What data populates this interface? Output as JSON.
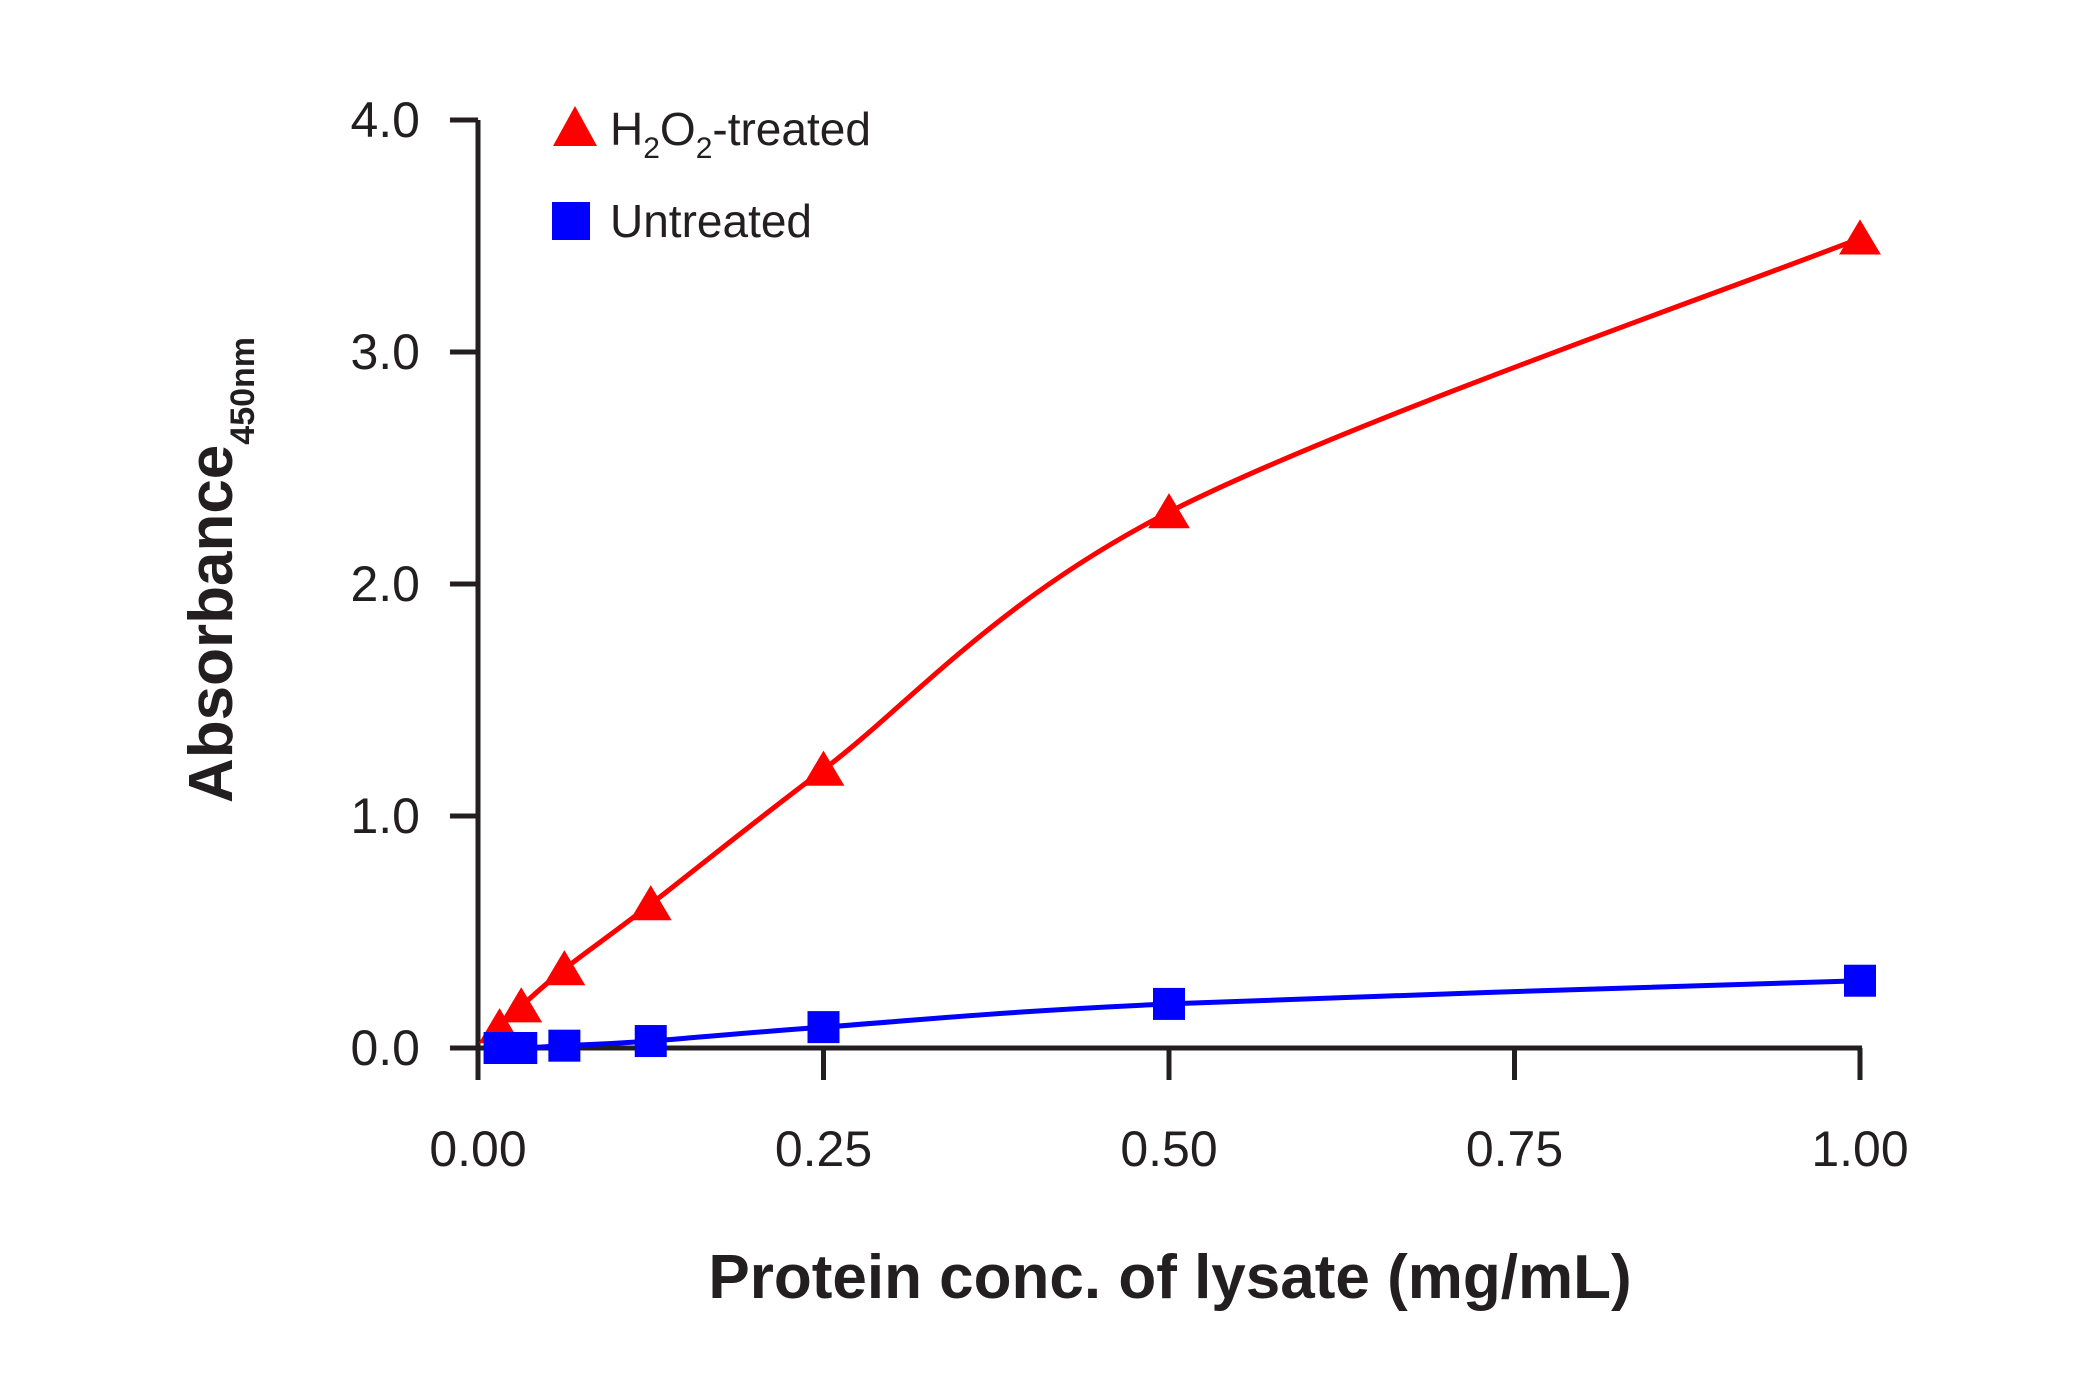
{
  "chart_data": {
    "type": "line",
    "xlabel": "Protein conc. of lysate (mg/mL)",
    "ylabel": {
      "main": "Absorbance",
      "subscript": "450nm"
    },
    "xlim": [
      0,
      1
    ],
    "ylim": [
      0,
      4
    ],
    "xticks": [
      "0.00",
      "0.25",
      "0.50",
      "0.75",
      "1.00"
    ],
    "yticks": [
      "0.0",
      "1.0",
      "2.0",
      "3.0",
      "4.0"
    ],
    "grid": false,
    "legend_position": "top-left",
    "series": [
      {
        "name": "H2O2-treated",
        "legend_label": {
          "p1": "H",
          "s1": "2",
          "p2": "O",
          "s2": "2",
          "p3": "-treated"
        },
        "marker": "triangle",
        "color": "#ff0000",
        "x": [
          0.0156,
          0.0313,
          0.0625,
          0.125,
          0.25,
          0.5,
          1.0
        ],
        "y": [
          0.09,
          0.18,
          0.34,
          0.62,
          1.2,
          2.31,
          3.49
        ]
      },
      {
        "name": "Untreated",
        "legend_label": {
          "p1": "Untreated"
        },
        "marker": "square",
        "color": "#0000ff",
        "x": [
          0.0156,
          0.0313,
          0.0625,
          0.125,
          0.25,
          0.5,
          1.0
        ],
        "y": [
          0.0,
          0.0,
          0.01,
          0.03,
          0.09,
          0.19,
          0.29
        ]
      }
    ]
  }
}
